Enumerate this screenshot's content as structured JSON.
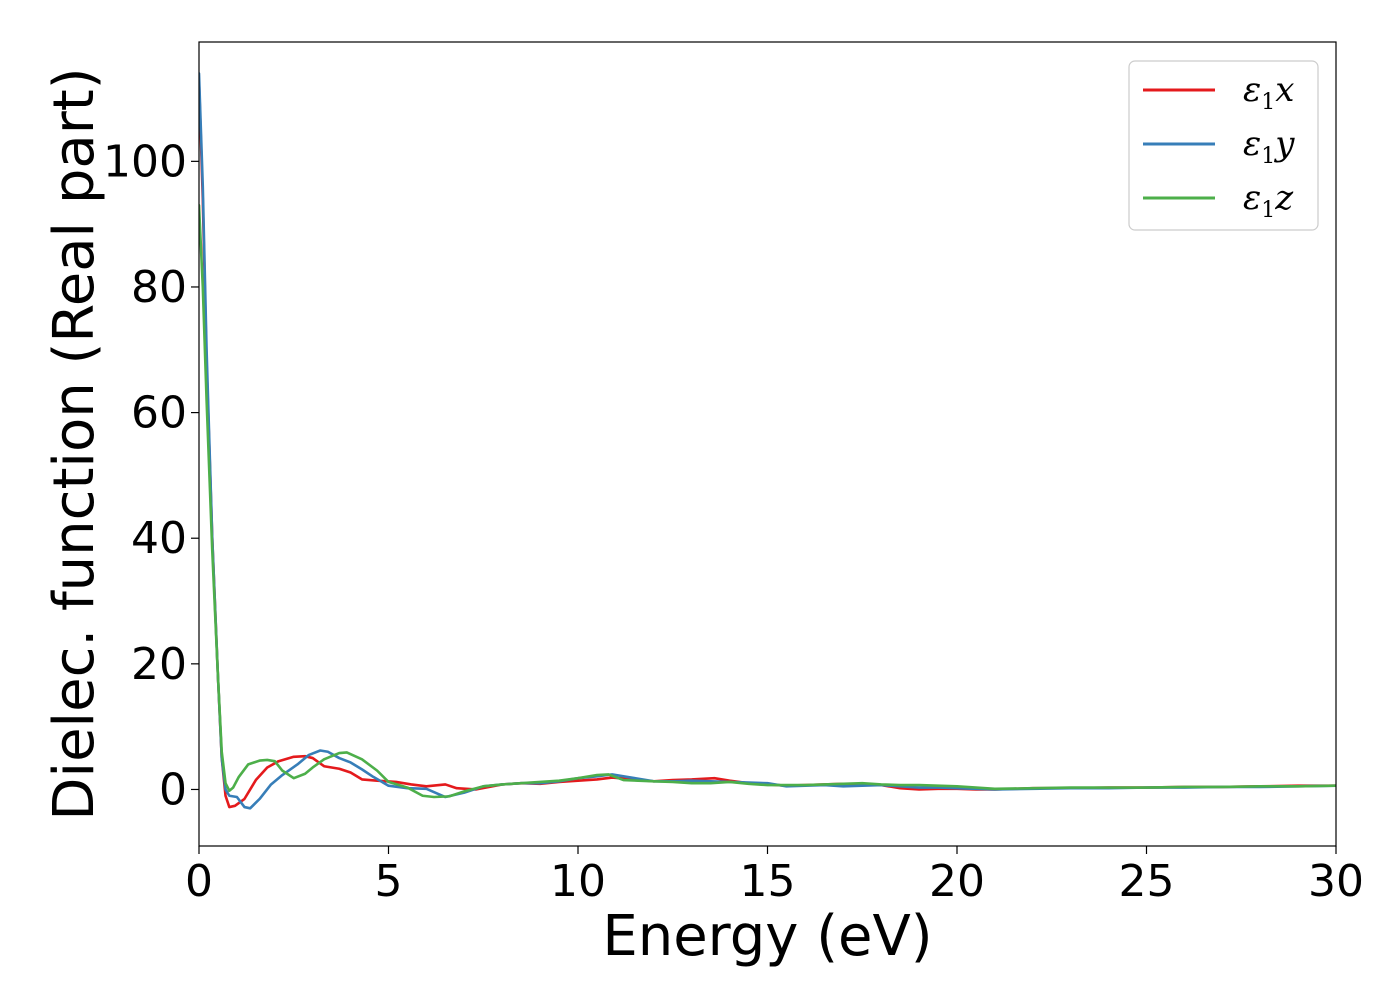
{
  "chart_data": {
    "type": "line",
    "xlabel": "Energy (eV)",
    "ylabel": "Dielec. function (Real part)",
    "xlim": [
      0,
      30
    ],
    "ylim": [
      -9,
      119
    ],
    "xticks": [
      0,
      5,
      10,
      15,
      20,
      25,
      30
    ],
    "yticks": [
      0,
      20,
      40,
      60,
      80,
      100
    ],
    "grid": false,
    "legend_position": "top-right",
    "series": [
      {
        "name": "ε1x",
        "legend_main": "ε",
        "legend_sub": "1",
        "legend_var": "x",
        "color": "#e41a1c",
        "x": [
          0.0,
          0.1,
          0.2,
          0.35,
          0.5,
          0.6,
          0.7,
          0.8,
          0.95,
          1.2,
          1.5,
          1.8,
          2.1,
          2.5,
          2.8,
          3.0,
          3.3,
          3.7,
          4.0,
          4.3,
          4.7,
          5.2,
          5.6,
          6.0,
          6.5,
          6.8,
          7.3,
          8.0,
          8.5,
          9.0,
          9.5,
          10.0,
          10.5,
          10.9,
          11.3,
          12.0,
          12.5,
          13.0,
          13.6,
          14.0,
          14.5,
          15.0,
          15.5,
          16.0,
          16.5,
          17.0,
          17.5,
          18.0,
          18.5,
          19.0,
          19.5,
          20.0,
          20.5,
          21.0,
          22.0,
          23.0,
          24.0,
          25.0,
          26.0,
          27.0,
          28.0,
          29.0,
          30.0
        ],
        "y": [
          113,
          94,
          68,
          40,
          18,
          5,
          -1,
          -2.8,
          -2.6,
          -1.5,
          1.5,
          3.5,
          4.5,
          5.2,
          5.3,
          5.0,
          3.7,
          3.3,
          2.7,
          1.6,
          1.4,
          1.2,
          0.8,
          0.5,
          0.8,
          0.2,
          0.0,
          0.8,
          1.0,
          0.9,
          1.2,
          1.4,
          1.6,
          1.9,
          1.7,
          1.3,
          1.5,
          1.6,
          1.8,
          1.4,
          1.0,
          0.8,
          0.6,
          0.7,
          0.8,
          0.9,
          0.9,
          0.7,
          0.2,
          0.0,
          0.1,
          0.1,
          0.0,
          0.0,
          0.2,
          0.2,
          0.3,
          0.3,
          0.4,
          0.4,
          0.5,
          0.6,
          0.6
        ]
      },
      {
        "name": "ε1y",
        "legend_main": "ε",
        "legend_sub": "1",
        "legend_var": "y",
        "color": "#377eb8",
        "x": [
          0.0,
          0.1,
          0.2,
          0.35,
          0.5,
          0.6,
          0.7,
          0.8,
          1.0,
          1.2,
          1.35,
          1.6,
          1.9,
          2.2,
          2.6,
          2.9,
          3.2,
          3.4,
          3.7,
          4.0,
          4.3,
          4.6,
          5.0,
          5.5,
          6.0,
          6.5,
          7.0,
          7.5,
          8.0,
          8.5,
          9.0,
          9.5,
          10.0,
          10.5,
          10.9,
          11.3,
          12.0,
          12.5,
          13.0,
          13.5,
          14.0,
          14.5,
          15.0,
          15.5,
          16.0,
          16.5,
          17.0,
          17.5,
          18.0,
          18.5,
          19.0,
          19.5,
          20.0,
          20.5,
          21.0,
          22.0,
          23.0,
          24.0,
          25.0,
          26.0,
          27.0,
          28.0,
          29.0,
          30.0
        ],
        "y": [
          114,
          96,
          70,
          40,
          18,
          5,
          0,
          -1.0,
          -1.2,
          -2.8,
          -3.0,
          -1.5,
          0.8,
          2.3,
          4.0,
          5.5,
          6.2,
          6.0,
          5.0,
          4.3,
          3.2,
          2.0,
          0.6,
          0.2,
          0.1,
          -1.2,
          -0.5,
          0.5,
          0.8,
          1.0,
          1.0,
          1.3,
          1.8,
          2.1,
          2.4,
          2.0,
          1.3,
          1.3,
          1.4,
          1.3,
          1.2,
          1.1,
          1.0,
          0.5,
          0.6,
          0.7,
          0.5,
          0.6,
          0.7,
          0.5,
          0.3,
          0.3,
          0.2,
          0.1,
          0.0,
          0.1,
          0.2,
          0.2,
          0.3,
          0.3,
          0.4,
          0.4,
          0.5,
          0.6
        ]
      },
      {
        "name": "ε1z",
        "legend_main": "ε",
        "legend_sub": "1",
        "legend_var": "z",
        "color": "#4daf4a",
        "x": [
          0.0,
          0.1,
          0.2,
          0.35,
          0.5,
          0.6,
          0.7,
          0.8,
          0.9,
          1.05,
          1.3,
          1.6,
          1.8,
          2.0,
          2.2,
          2.5,
          2.8,
          3.0,
          3.3,
          3.7,
          3.9,
          4.3,
          4.7,
          5.0,
          5.5,
          5.9,
          6.2,
          6.6,
          7.0,
          7.5,
          8.0,
          8.5,
          9.0,
          9.5,
          10.0,
          10.5,
          10.8,
          11.2,
          12.0,
          12.5,
          13.0,
          13.5,
          14.0,
          14.5,
          15.0,
          15.5,
          16.0,
          16.5,
          17.0,
          17.5,
          18.0,
          18.5,
          19.0,
          19.5,
          20.0,
          20.5,
          21.0,
          22.0,
          23.0,
          24.0,
          25.0,
          26.0,
          27.0,
          28.0,
          29.0,
          30.0
        ],
        "y": [
          93,
          80,
          62,
          38,
          18,
          6,
          1,
          -0.2,
          0.3,
          2.0,
          4.0,
          4.6,
          4.7,
          4.5,
          3.0,
          1.8,
          2.5,
          3.5,
          4.8,
          5.8,
          5.9,
          4.8,
          3.0,
          1.2,
          0.3,
          -1.0,
          -1.2,
          -1.1,
          -0.3,
          0.5,
          0.8,
          1.0,
          1.2,
          1.4,
          1.8,
          2.3,
          2.4,
          1.5,
          1.3,
          1.2,
          1.0,
          1.0,
          1.2,
          0.9,
          0.7,
          0.7,
          0.7,
          0.8,
          0.9,
          1.0,
          0.8,
          0.7,
          0.7,
          0.6,
          0.5,
          0.3,
          0.1,
          0.2,
          0.3,
          0.3,
          0.3,
          0.4,
          0.4,
          0.5,
          0.5,
          0.6
        ]
      }
    ]
  }
}
